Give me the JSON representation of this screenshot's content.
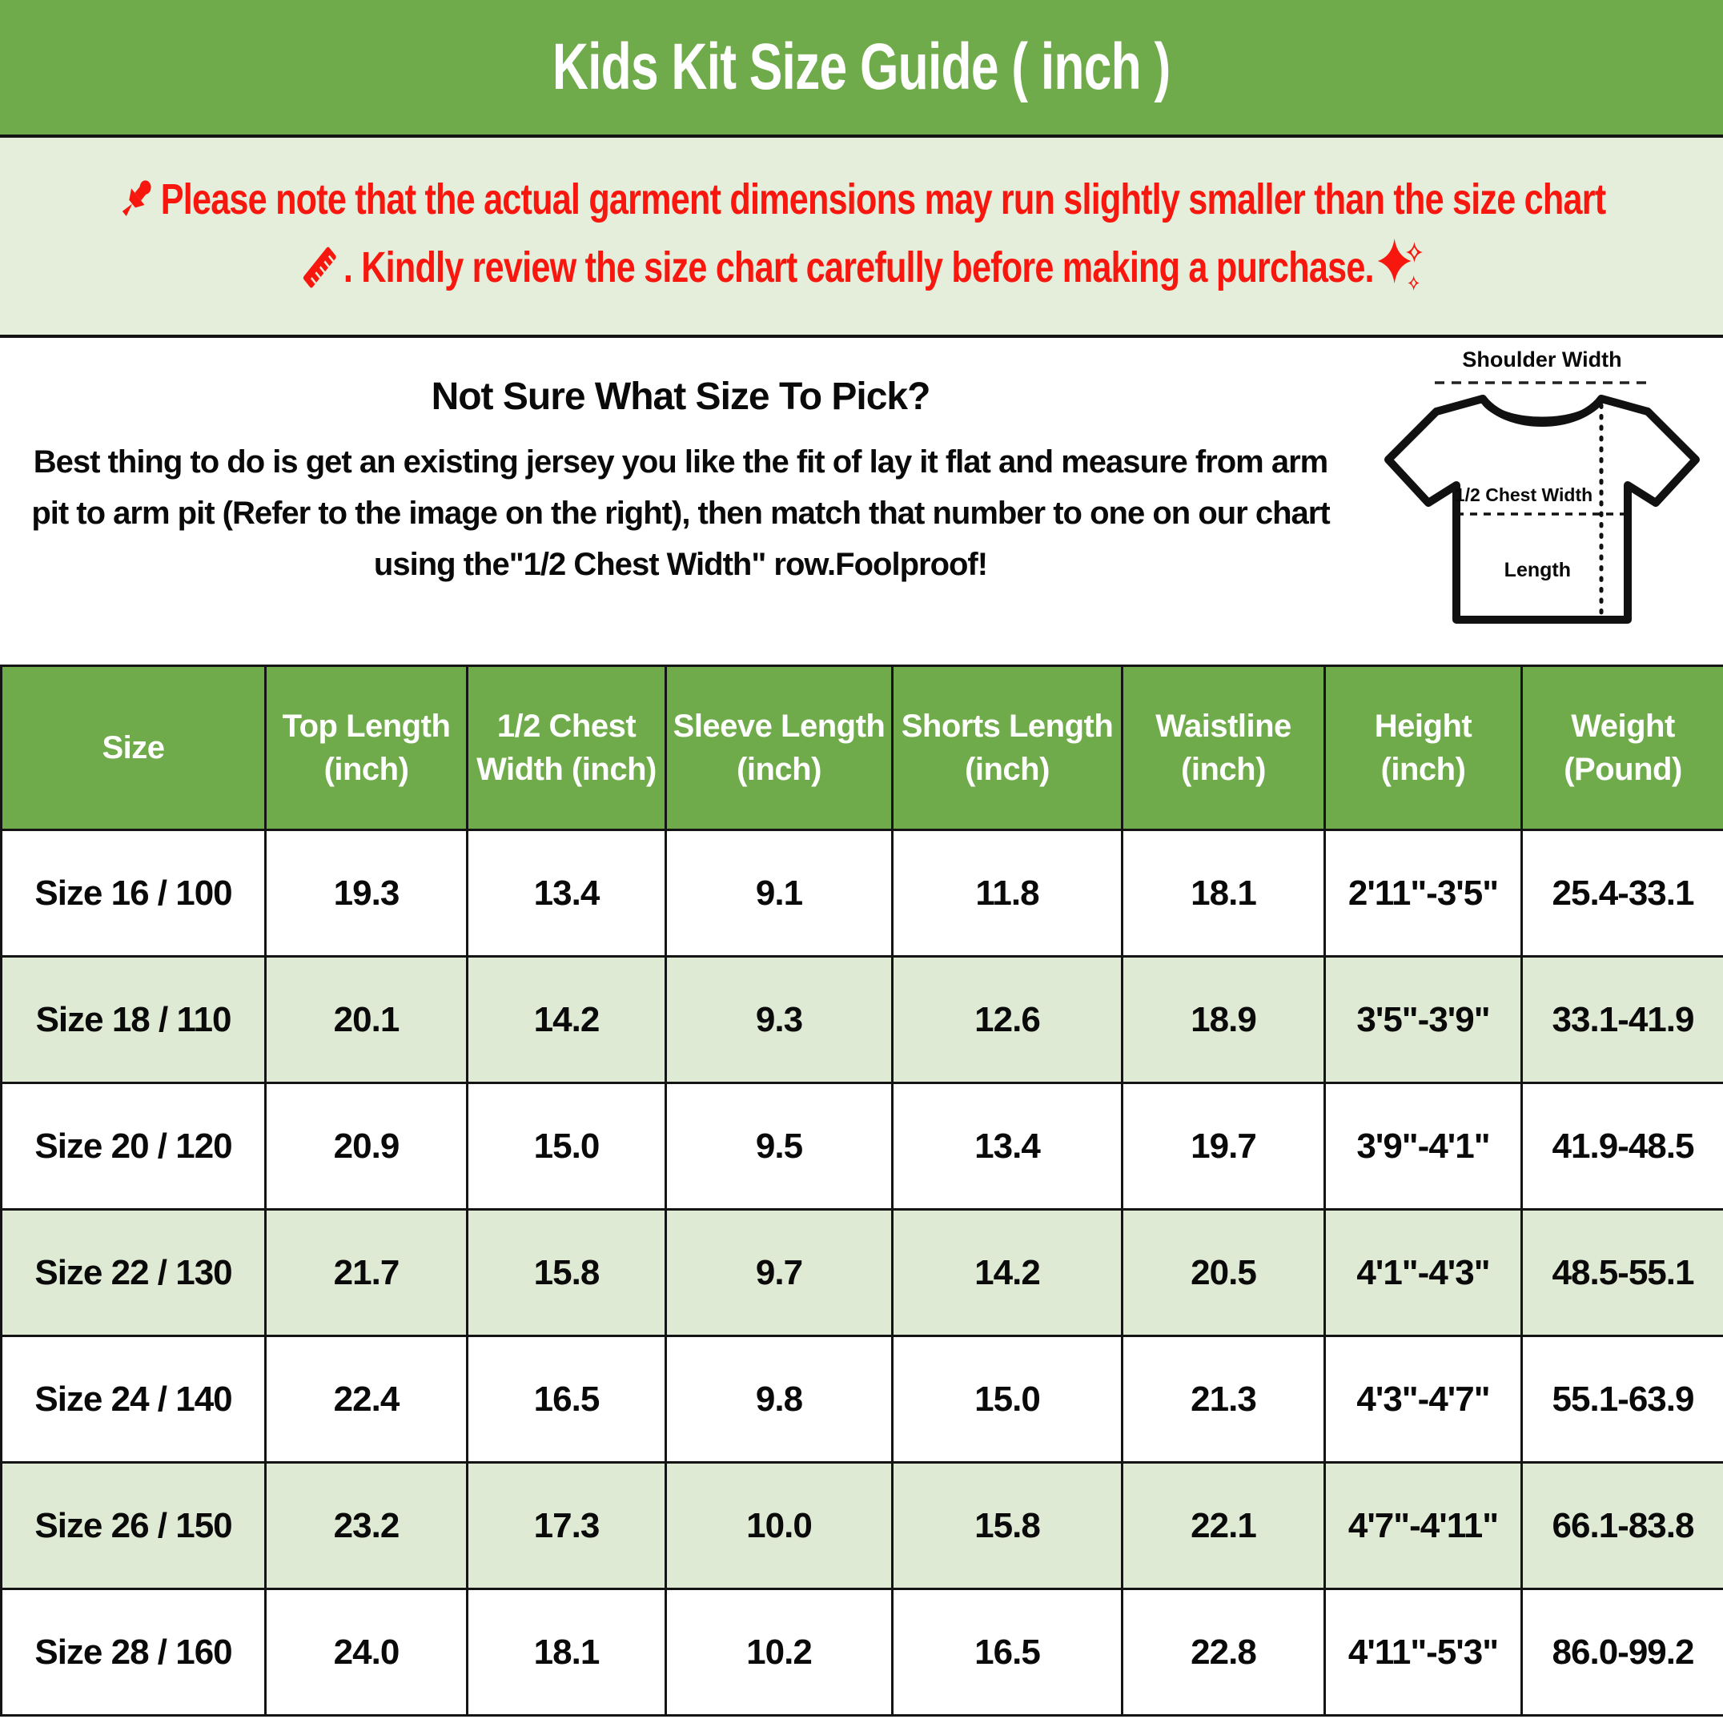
{
  "title": "Kids Kit Size Guide ( inch )",
  "notice": {
    "line1": "Please note that the actual garment dimensions may run slightly smaller than the size chart",
    "line2": ". Kindly review the size chart carefully before making a purchase.",
    "icons": [
      "pushpin-icon",
      "ruler-icon",
      "sparkles-icon"
    ]
  },
  "size_help": {
    "heading": "Not Sure What Size To Pick?",
    "body": "Best thing to do is get an existing jersey you like the fit of lay it flat and measure from arm pit to arm pit (Refer to the image on the right), then match that number to one on our chart using the\"1/2 Chest Width\" row.Foolproof!"
  },
  "diagram": {
    "shoulder_label": "Shoulder Width",
    "chest_label": "1/2 Chest Width",
    "length_label": "Length"
  },
  "chart_data": {
    "type": "table",
    "columns": [
      "Size",
      "Top Length (inch)",
      "1/2 Chest Width (inch)",
      "Sleeve Length (inch)",
      "Shorts Length (inch)",
      "Waistline (inch)",
      "Height (inch)",
      "Weight (Pound)"
    ],
    "rows": [
      [
        "Size 16 / 100",
        "19.3",
        "13.4",
        "9.1",
        "11.8",
        "18.1",
        "2'11\"-3'5\"",
        "25.4-33.1"
      ],
      [
        "Size 18 / 110",
        "20.1",
        "14.2",
        "9.3",
        "12.6",
        "18.9",
        "3'5\"-3'9\"",
        "33.1-41.9"
      ],
      [
        "Size 20 / 120",
        "20.9",
        "15.0",
        "9.5",
        "13.4",
        "19.7",
        "3'9\"-4'1\"",
        "41.9-48.5"
      ],
      [
        "Size 22 / 130",
        "21.7",
        "15.8",
        "9.7",
        "14.2",
        "20.5",
        "4'1\"-4'3\"",
        "48.5-55.1"
      ],
      [
        "Size 24 / 140",
        "22.4",
        "16.5",
        "9.8",
        "15.0",
        "21.3",
        "4'3\"-4'7\"",
        "55.1-63.9"
      ],
      [
        "Size 26 / 150",
        "23.2",
        "17.3",
        "10.0",
        "15.8",
        "22.1",
        "4'7\"-4'11\"",
        "66.1-83.8"
      ],
      [
        "Size 28 / 160",
        "24.0",
        "18.1",
        "10.2",
        "16.5",
        "22.8",
        "4'11\"-5'3\"",
        "86.0-99.2"
      ]
    ]
  },
  "colors": {
    "green": "#6fab4a",
    "notice-bg": "#e4eedb",
    "row-alt": "#dfead4",
    "red": "#f8170e",
    "line": "#141414"
  }
}
